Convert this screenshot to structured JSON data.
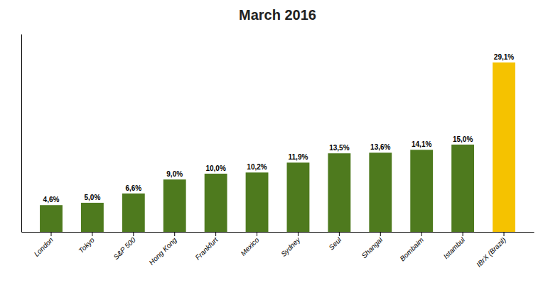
{
  "chart_data": {
    "type": "bar",
    "title": "March 2016",
    "categories": [
      "London",
      "Tokyo",
      "S&P 500",
      "Hong Kong",
      "Frankfurt",
      "Mexico",
      "Sydney",
      "Seul",
      "Shangai",
      "Bombaim",
      "Istambul",
      "IBrX (Brazil)"
    ],
    "values": [
      4.6,
      5.0,
      6.6,
      9.0,
      10.0,
      10.2,
      11.9,
      13.5,
      13.6,
      14.1,
      15.0,
      29.1
    ],
    "value_labels": [
      "4,6%",
      "5,0%",
      "6,6%",
      "9,0%",
      "10,0%",
      "10,2%",
      "11,9%",
      "13,5%",
      "13,6%",
      "14,1%",
      "15,0%",
      "29,1%"
    ],
    "colors": [
      "#4e7a1e",
      "#4e7a1e",
      "#4e7a1e",
      "#4e7a1e",
      "#4e7a1e",
      "#4e7a1e",
      "#4e7a1e",
      "#4e7a1e",
      "#4e7a1e",
      "#4e7a1e",
      "#4e7a1e",
      "#f5c200"
    ],
    "ylim": [
      0,
      34
    ],
    "data_labels": true,
    "tick_labels": "x",
    "grid": false
  }
}
